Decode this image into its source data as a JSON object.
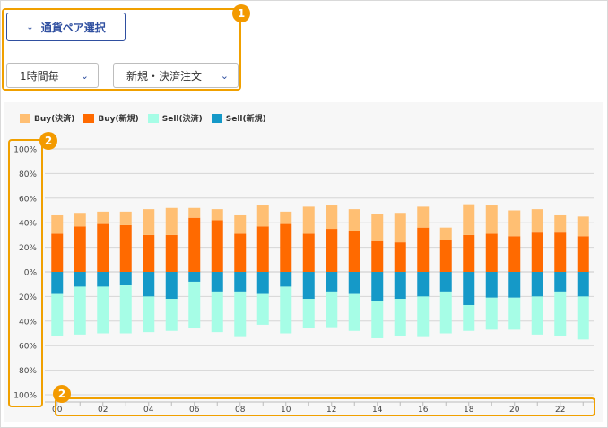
{
  "controls": {
    "pair_button": "通貨ペア選択",
    "interval": "1時間毎",
    "order_type": "新規・決済注文"
  },
  "badges": {
    "one": "1",
    "two": "2"
  },
  "colors": {
    "buy_settle": "#ffbf73",
    "buy_new": "#ff6a00",
    "sell_settle": "#a6fde6",
    "sell_new": "#1599c8",
    "accent": "#f39a00"
  },
  "chart_data": {
    "type": "bar",
    "stacked": true,
    "diverging": true,
    "categories": [
      "00",
      "01",
      "02",
      "03",
      "04",
      "05",
      "06",
      "07",
      "08",
      "09",
      "10",
      "11",
      "12",
      "13",
      "14",
      "15",
      "16",
      "17",
      "18",
      "19",
      "20",
      "21",
      "22",
      "23"
    ],
    "x_tick_labels": [
      "00",
      "02",
      "04",
      "06",
      "08",
      "10",
      "12",
      "14",
      "16",
      "18",
      "20",
      "22"
    ],
    "y_tick_labels": [
      "100%",
      "80%",
      "60%",
      "40%",
      "20%",
      "0%",
      "20%",
      "40%",
      "60%",
      "80%",
      "100%"
    ],
    "ylim": [
      -100,
      100
    ],
    "grid": true,
    "legend_position": "top-left",
    "series": [
      {
        "name": "Buy(決済)",
        "direction": "up",
        "values": [
          15,
          11,
          10,
          11,
          21,
          22,
          8,
          9,
          15,
          17,
          10,
          22,
          19,
          18,
          22,
          24,
          17,
          10,
          25,
          23,
          21,
          19,
          14,
          16
        ]
      },
      {
        "name": "Buy(新規)",
        "direction": "up",
        "values": [
          31,
          37,
          39,
          38,
          30,
          30,
          44,
          42,
          31,
          37,
          39,
          31,
          35,
          33,
          25,
          24,
          36,
          26,
          30,
          31,
          29,
          32,
          32,
          29
        ]
      },
      {
        "name": "Sell(決済)",
        "direction": "down",
        "values": [
          34,
          39,
          38,
          39,
          29,
          26,
          38,
          33,
          37,
          25,
          38,
          24,
          29,
          30,
          30,
          30,
          33,
          34,
          21,
          26,
          26,
          31,
          36,
          35
        ]
      },
      {
        "name": "Sell(新規)",
        "direction": "down",
        "values": [
          18,
          12,
          12,
          11,
          20,
          22,
          8,
          16,
          16,
          18,
          12,
          22,
          16,
          18,
          24,
          22,
          20,
          16,
          27,
          21,
          21,
          20,
          16,
          20
        ]
      }
    ]
  }
}
